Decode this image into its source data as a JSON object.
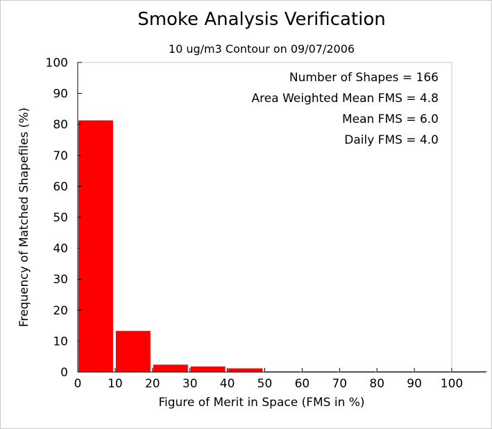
{
  "chart_data": {
    "type": "bar",
    "title": "Smoke Analysis Verification",
    "subtitle": "10 ug/m3 Contour on 09/07/2006",
    "xlabel": "Figure of Merit in Space (FMS in %)",
    "ylabel": "Frequency of Matched Shapefiles (%)",
    "xlim": [
      0,
      100
    ],
    "ylim": [
      0,
      100
    ],
    "x_ticks": [
      "0",
      "10",
      "20",
      "30",
      "40",
      "50",
      "60",
      "70",
      "80",
      "90",
      "100"
    ],
    "y_ticks": [
      "0",
      "10",
      "20",
      "30",
      "40",
      "50",
      "60",
      "70",
      "80",
      "90",
      "100"
    ],
    "bins": [
      {
        "start": 0,
        "end": 10,
        "value": 81.3
      },
      {
        "start": 10,
        "end": 20,
        "value": 13.3
      },
      {
        "start": 20,
        "end": 30,
        "value": 2.4
      },
      {
        "start": 30,
        "end": 40,
        "value": 1.8
      },
      {
        "start": 40,
        "end": 50,
        "value": 1.2
      },
      {
        "start": 50,
        "end": 60,
        "value": 0
      },
      {
        "start": 60,
        "end": 70,
        "value": 0
      },
      {
        "start": 70,
        "end": 80,
        "value": 0
      },
      {
        "start": 80,
        "end": 90,
        "value": 0
      },
      {
        "start": 90,
        "end": 100,
        "value": 0
      },
      {
        "start": 100,
        "end": 110,
        "value": 0
      }
    ],
    "bar_color": "#ff0000",
    "grid": false,
    "annotations": [
      "Number of Shapes = 166",
      "Area Weighted Mean FMS = 4.8",
      "Mean FMS = 6.0",
      "Daily FMS = 4.0"
    ]
  }
}
